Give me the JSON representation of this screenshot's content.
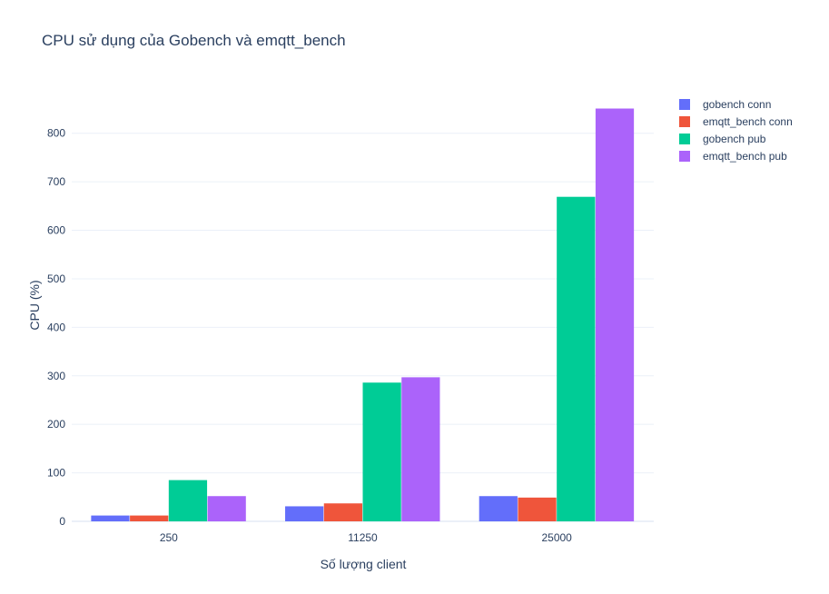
{
  "chart_data": {
    "type": "bar",
    "title": "CPU sử dụng của Gobench và emqtt_bench",
    "xlabel": "Số lượng client",
    "ylabel": "CPU (%)",
    "categories": [
      "250",
      "11250",
      "25000"
    ],
    "ylim": [
      0,
      895
    ],
    "yticks": [
      0,
      100,
      200,
      300,
      400,
      500,
      600,
      700,
      800
    ],
    "grid": true,
    "legend_position": "top-right",
    "series": [
      {
        "name": "gobench conn",
        "color": "#636efa",
        "values": [
          12,
          31,
          52
        ]
      },
      {
        "name": "emqtt_bench conn",
        "color": "#ef553b",
        "values": [
          12,
          37,
          49
        ]
      },
      {
        "name": "gobench pub",
        "color": "#00cc96",
        "values": [
          85,
          286,
          669
        ]
      },
      {
        "name": "emqtt_bench pub",
        "color": "#ab63fa",
        "values": [
          52,
          297,
          851
        ]
      }
    ]
  }
}
